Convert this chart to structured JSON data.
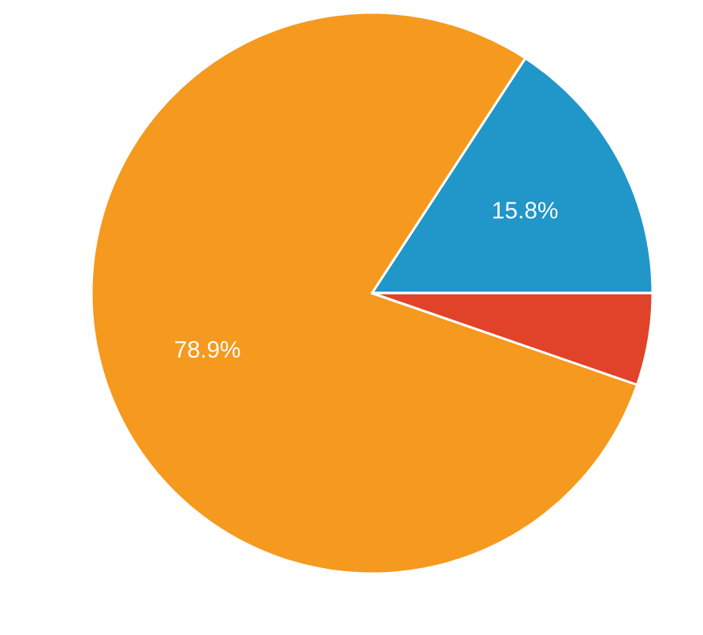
{
  "chart_data": {
    "type": "pie",
    "categories": [
      null,
      null,
      null
    ],
    "values": [
      15.8,
      78.9,
      5.3
    ],
    "colors": [
      "#2196c9",
      "#f5991f",
      "#e0432a"
    ],
    "value_labels": [
      "15.8%",
      "78.9%",
      null
    ]
  }
}
